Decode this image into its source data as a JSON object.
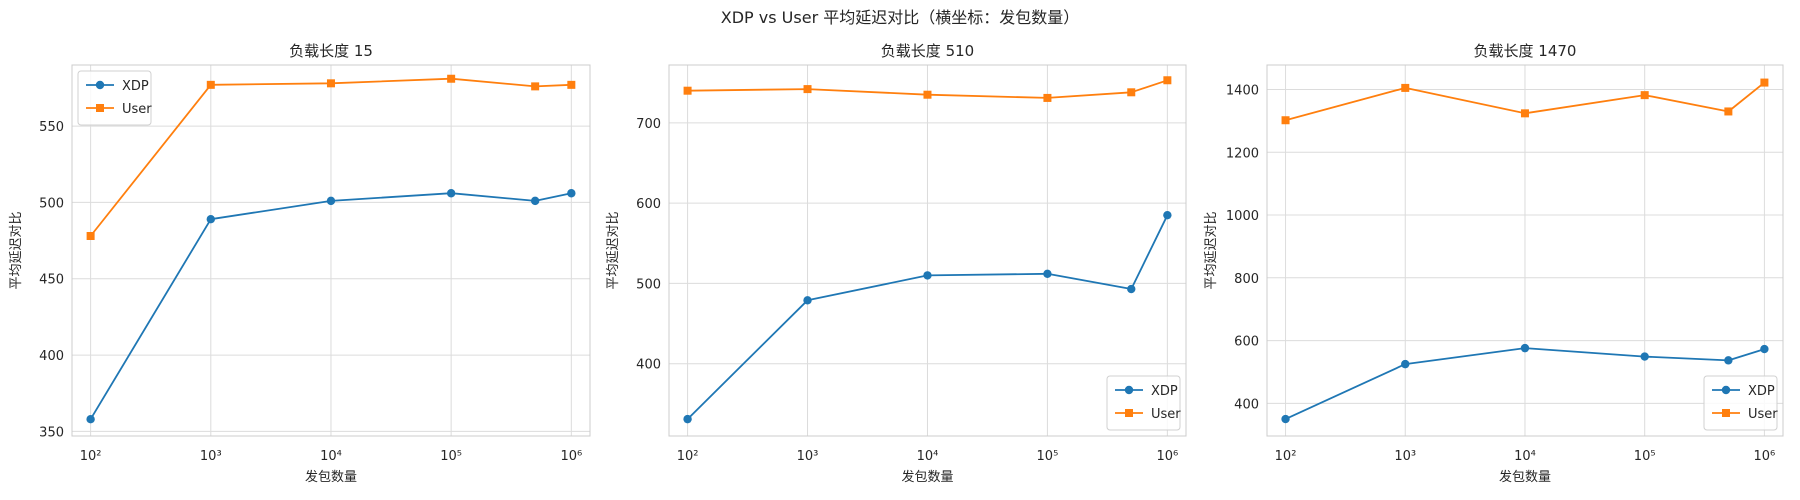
{
  "figure": {
    "suptitle": "XDP vs User 平均延迟对比（横坐标：发包数量）"
  },
  "chart_data": [
    {
      "type": "line",
      "title": "负载长度 15",
      "xlabel": "发包数量",
      "ylabel": "平均延迟对比",
      "xscale": "log",
      "x": [
        100,
        1000,
        10000,
        100000,
        500000,
        1000000
      ],
      "xticks": [
        100,
        1000,
        10000,
        100000,
        1000000
      ],
      "xlim": [
        70,
        1430000
      ],
      "ylim": [
        347,
        590
      ],
      "yticks": [
        350,
        400,
        450,
        500,
        550
      ],
      "grid": true,
      "legend": "upper left",
      "series": [
        {
          "name": "XDP",
          "values": [
            358,
            489,
            501,
            506,
            501,
            506
          ],
          "color": "#1f77b4",
          "marker": "circle"
        },
        {
          "name": "User",
          "values": [
            478,
            577,
            578,
            581,
            576,
            577
          ],
          "color": "#ff7f0e",
          "marker": "square"
        }
      ]
    },
    {
      "type": "line",
      "title": "负载长度 510",
      "xlabel": "发包数量",
      "ylabel": "平均延迟对比",
      "xscale": "log",
      "x": [
        100,
        1000,
        10000,
        100000,
        500000,
        1000000
      ],
      "xticks": [
        100,
        1000,
        10000,
        100000,
        1000000
      ],
      "xlim": [
        70,
        1430000
      ],
      "ylim": [
        310,
        772
      ],
      "yticks": [
        400,
        500,
        600,
        700
      ],
      "grid": true,
      "legend": "lower right",
      "series": [
        {
          "name": "XDP",
          "values": [
            331,
            479,
            510,
            512,
            493,
            585
          ],
          "color": "#1f77b4",
          "marker": "circle"
        },
        {
          "name": "User",
          "values": [
            740,
            742,
            735,
            731,
            738,
            753
          ],
          "color": "#ff7f0e",
          "marker": "square"
        }
      ]
    },
    {
      "type": "line",
      "title": "负载长度 1470",
      "xlabel": "发包数量",
      "ylabel": "平均延迟对比",
      "xscale": "log",
      "x": [
        100,
        1000,
        10000,
        100000,
        500000,
        1000000
      ],
      "xticks": [
        100,
        1000,
        10000,
        100000,
        1000000
      ],
      "xlim": [
        70,
        1430000
      ],
      "ylim": [
        296,
        1478
      ],
      "yticks": [
        400,
        600,
        800,
        1000,
        1200,
        1400
      ],
      "grid": true,
      "legend": "lower right",
      "series": [
        {
          "name": "XDP",
          "values": [
            350,
            525,
            576,
            549,
            537,
            573
          ],
          "color": "#1f77b4",
          "marker": "circle"
        },
        {
          "name": "User",
          "values": [
            1302,
            1405,
            1324,
            1382,
            1330,
            1422
          ],
          "color": "#ff7f0e",
          "marker": "square"
        }
      ]
    }
  ]
}
